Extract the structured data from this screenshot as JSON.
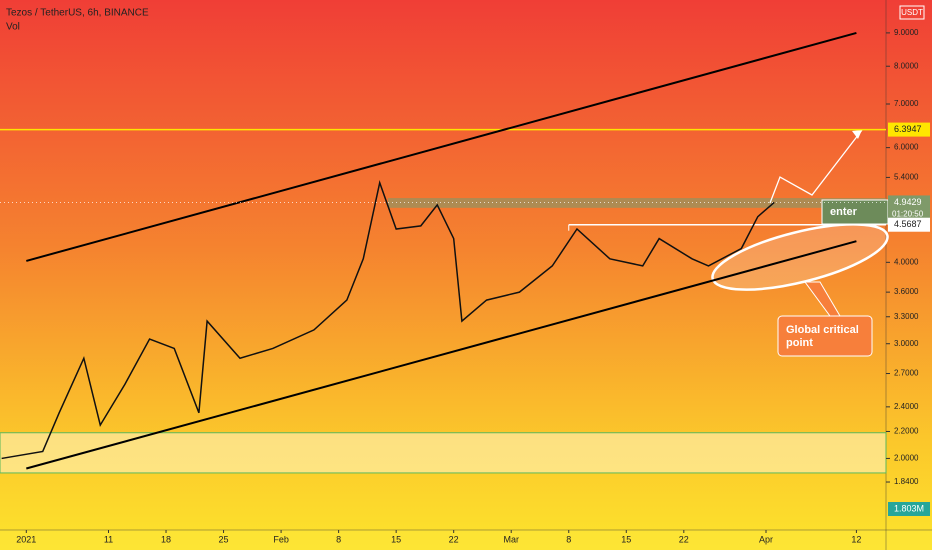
{
  "chart_data": {
    "type": "line",
    "title": "Tezos / TetherUS, 6h, BINANCE",
    "indicator": "Vol",
    "currency": "USDT",
    "color": "#111111",
    "log_scale": true,
    "x": [
      -3,
      2,
      4,
      7,
      9,
      12,
      15,
      18,
      21,
      22,
      26,
      30,
      35,
      39,
      41,
      43,
      45,
      48,
      50,
      52,
      53,
      56,
      60,
      64,
      67,
      71,
      75,
      77,
      81,
      83,
      87,
      89,
      91
    ],
    "values": [
      2.0,
      2.05,
      2.35,
      2.85,
      2.25,
      2.6,
      3.05,
      2.95,
      2.35,
      3.25,
      2.85,
      2.95,
      3.15,
      3.5,
      4.05,
      5.3,
      4.5,
      4.55,
      4.9,
      4.35,
      3.25,
      3.5,
      3.6,
      3.95,
      4.5,
      4.05,
      3.95,
      4.35,
      4.05,
      3.95,
      4.2,
      4.7,
      4.9429
    ],
    "xlim": [
      -3.2,
      104.6
    ],
    "ylim": [
      1.564,
      10.11
    ],
    "xticks": [
      {
        "value": 0,
        "label": "2021"
      },
      {
        "value": 10,
        "label": "11"
      },
      {
        "value": 17,
        "label": "18"
      },
      {
        "value": 24,
        "label": "25"
      },
      {
        "value": 31,
        "label": "Feb"
      },
      {
        "value": 38,
        "label": "8"
      },
      {
        "value": 45,
        "label": "15"
      },
      {
        "value": 52,
        "label": "22"
      },
      {
        "value": 59,
        "label": "Mar"
      },
      {
        "value": 66,
        "label": "8"
      },
      {
        "value": 73,
        "label": "15"
      },
      {
        "value": 80,
        "label": "22"
      },
      {
        "value": 90,
        "label": "Apr"
      },
      {
        "value": 101,
        "label": "12"
      }
    ],
    "yticks": [
      {
        "value": 9,
        "label": "9.0000"
      },
      {
        "value": 8,
        "label": "8.0000"
      },
      {
        "value": 7,
        "label": "7.0000"
      },
      {
        "value": 6,
        "label": "6.0000"
      },
      {
        "value": 5.4,
        "label": "5.4000"
      },
      {
        "value": 4,
        "label": "4.0000"
      },
      {
        "value": 3.6,
        "label": "3.6000"
      },
      {
        "value": 3.3,
        "label": "3.3000"
      },
      {
        "value": 3,
        "label": "3.0000"
      },
      {
        "value": 2.7,
        "label": "2.7000"
      },
      {
        "value": 2.4,
        "label": "2.4000"
      },
      {
        "value": 2.2,
        "label": "2.2000"
      },
      {
        "value": 2,
        "label": "2.0000"
      },
      {
        "value": 1.84,
        "label": "1.8400"
      }
    ],
    "levels": [
      6.3947,
      4.5687
    ],
    "last_price": 4.9429,
    "countdown": "01:20:50",
    "volume_label": "1.803M",
    "trendlines": [
      {
        "x": [
          0,
          101
        ],
        "y": [
          4.02,
          9.0
        ],
        "color": "#000000"
      },
      {
        "x": [
          0,
          101
        ],
        "y": [
          1.93,
          4.31
        ],
        "color": "#000000"
      }
    ],
    "range_box": [
      1.9,
      2.19
    ],
    "resistance_box": [
      4.85,
      5.02
    ],
    "annotations": [
      "enter",
      "Global critical point"
    ]
  }
}
